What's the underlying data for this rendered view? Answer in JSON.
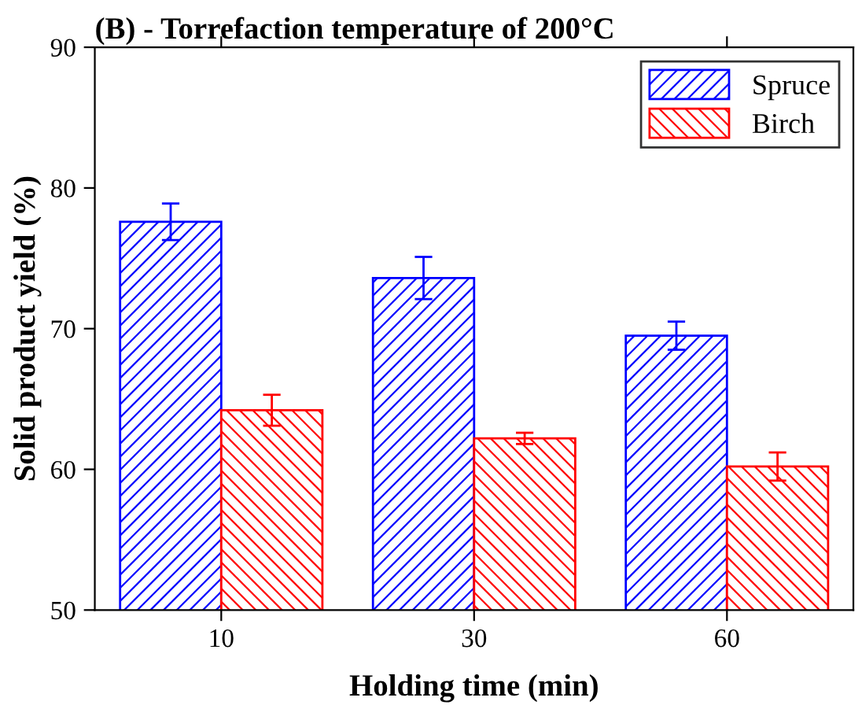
{
  "chart_data": {
    "type": "bar",
    "title": "(B) - Torrefaction temperature of 200°C",
    "xlabel": "Holding time (min)",
    "ylabel": "Solid product yield (%)",
    "categories": [
      "10",
      "30",
      "60"
    ],
    "series": [
      {
        "name": "Spruce",
        "color": "#0000ff",
        "values": [
          77.6,
          73.6,
          69.5
        ],
        "errors": [
          1.3,
          1.5,
          1.0
        ]
      },
      {
        "name": "Birch",
        "color": "#ff0000",
        "values": [
          64.2,
          62.2,
          60.2
        ],
        "errors": [
          1.1,
          0.4,
          1.0
        ]
      }
    ],
    "ylim": [
      50,
      90
    ],
    "yticks": [
      50,
      60,
      70,
      80,
      90
    ],
    "grid": false,
    "legend": "top right"
  }
}
